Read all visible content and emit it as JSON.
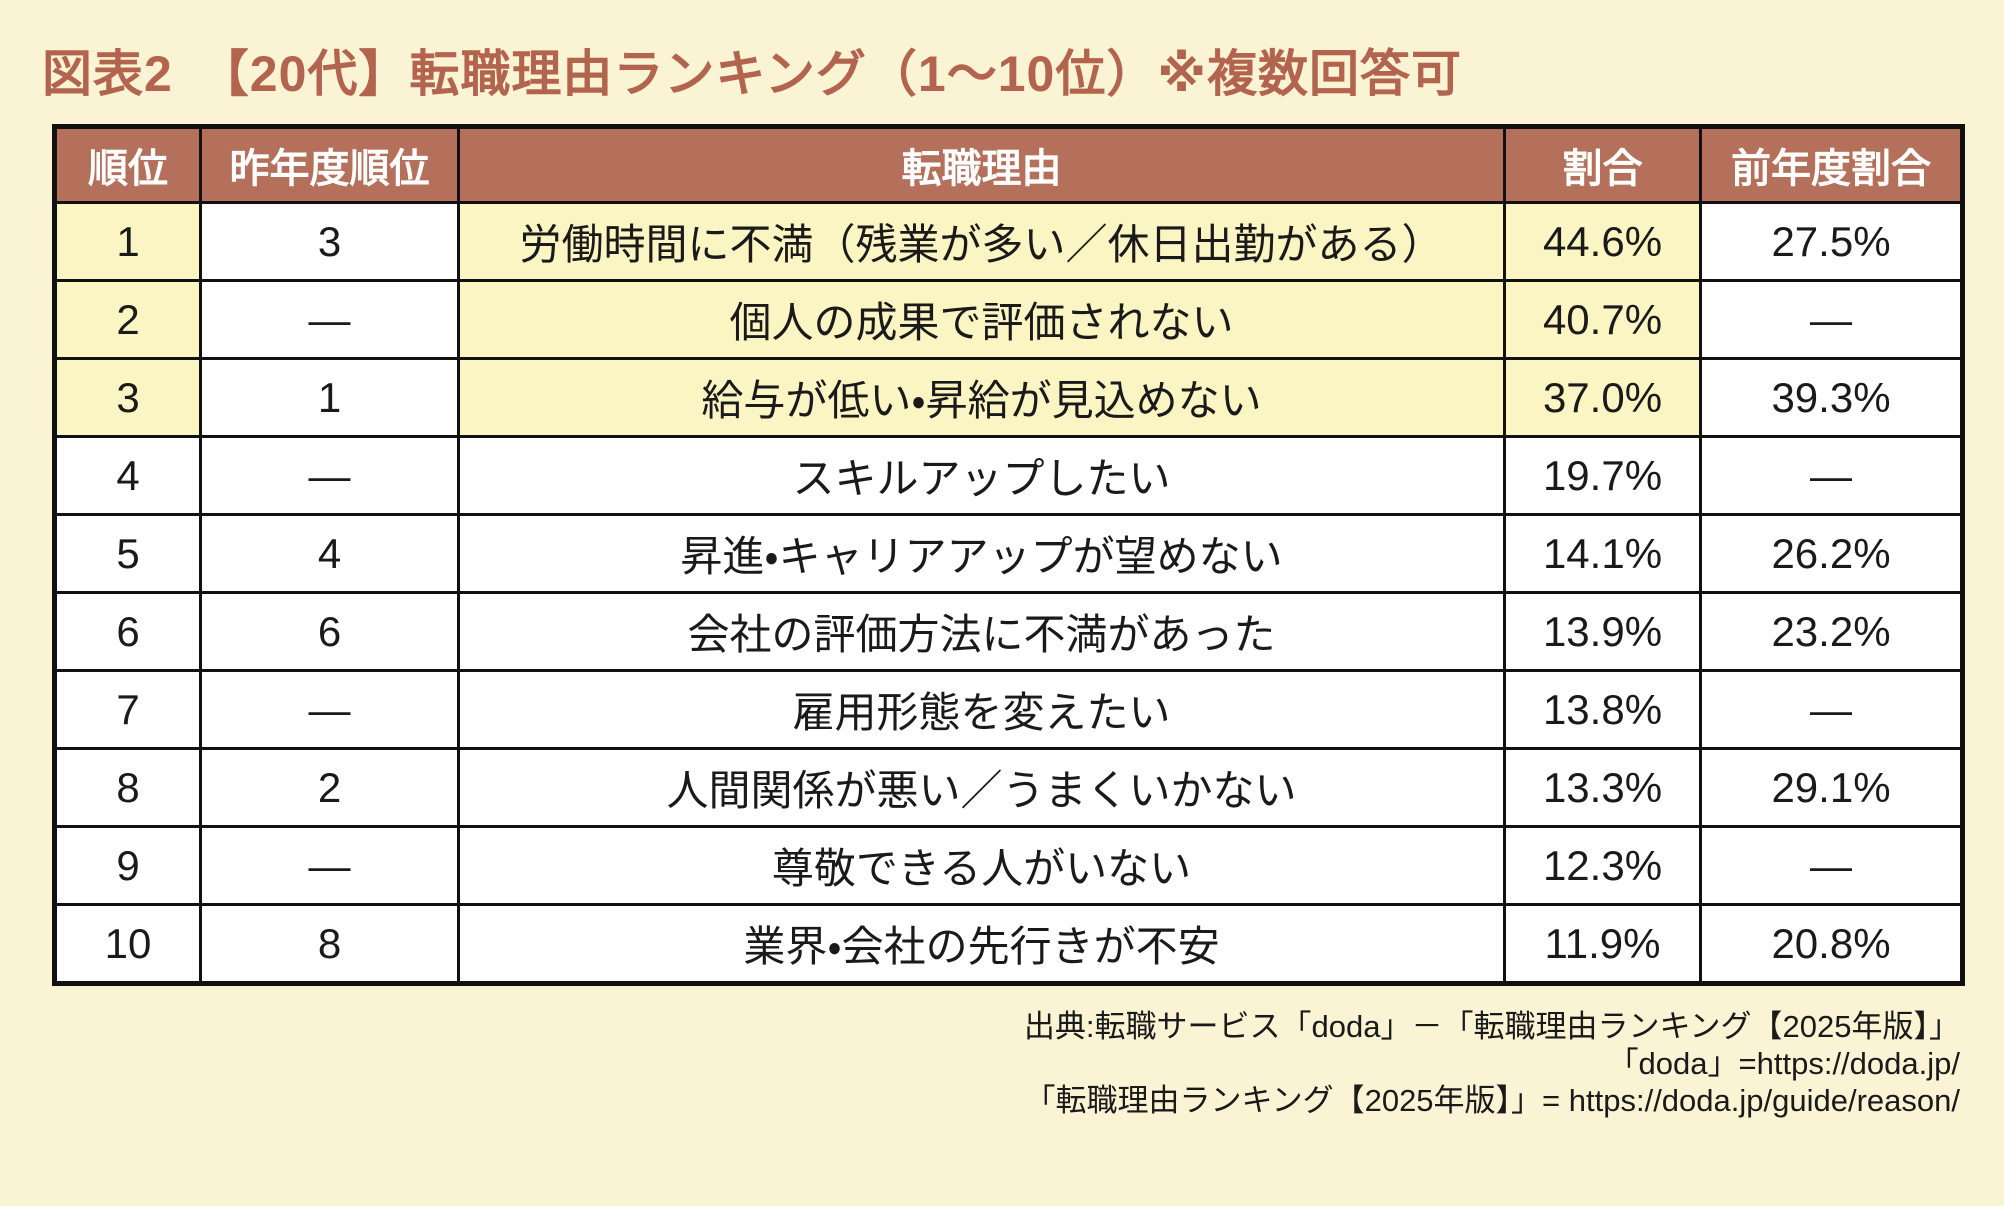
{
  "chart_data": {
    "type": "table",
    "title": "図表2　【20代】転職理由ランキング（1〜10位）※複数回答可",
    "note": "※複数回答可",
    "columns": [
      "順位",
      "昨年度順位",
      "転職理由",
      "割合",
      "前年度割合"
    ],
    "rows": [
      {
        "rank": "1",
        "prev_rank": "3",
        "reason": "労働時間に不満（残業が多い／休日出勤がある）",
        "pct": "44.6%",
        "prev_pct": "27.5%",
        "highlight": true
      },
      {
        "rank": "2",
        "prev_rank": "—",
        "reason": "個人の成果で評価されない",
        "pct": "40.7%",
        "prev_pct": "—",
        "highlight": true
      },
      {
        "rank": "3",
        "prev_rank": "1",
        "reason": "給与が低い・昇給が見込めない",
        "pct": "37.0%",
        "prev_pct": "39.3%",
        "highlight": true
      },
      {
        "rank": "4",
        "prev_rank": "—",
        "reason": "スキルアップしたい",
        "pct": "19.7%",
        "prev_pct": "—",
        "highlight": false
      },
      {
        "rank": "5",
        "prev_rank": "4",
        "reason": "昇進・キャリアアップが望めない",
        "pct": "14.1%",
        "prev_pct": "26.2%",
        "highlight": false
      },
      {
        "rank": "6",
        "prev_rank": "6",
        "reason": "会社の評価方法に不満があった",
        "pct": "13.9%",
        "prev_pct": "23.2%",
        "highlight": false
      },
      {
        "rank": "7",
        "prev_rank": "—",
        "reason": "雇用形態を変えたい",
        "pct": "13.8%",
        "prev_pct": "—",
        "highlight": false
      },
      {
        "rank": "8",
        "prev_rank": "2",
        "reason": "人間関係が悪い／うまくいかない",
        "pct": "13.3%",
        "prev_pct": "29.1%",
        "highlight": false
      },
      {
        "rank": "9",
        "prev_rank": "—",
        "reason": "尊敬できる人がいない",
        "pct": "12.3%",
        "prev_pct": "—",
        "highlight": false
      },
      {
        "rank": "10",
        "prev_rank": "8",
        "reason": "業界・会社の先行きが不安",
        "pct": "11.9%",
        "prev_pct": "20.8%",
        "highlight": false
      }
    ]
  },
  "source": {
    "line1": "出典:転職サービス「doda」－「転職理由ランキング【2025年版】」",
    "line2": "「doda」=https://doda.jp/",
    "line3": "「転職理由ランキング【2025年版】」= https://doda.jp/guide/reason/"
  },
  "colors": {
    "background": "#FAF3D4",
    "header_brown": "#B4705A",
    "title_brown": "#B2644F",
    "highlight_yellow": "#FBF5C4",
    "cell_white": "#FFFFFF",
    "border_black": "#111111"
  }
}
